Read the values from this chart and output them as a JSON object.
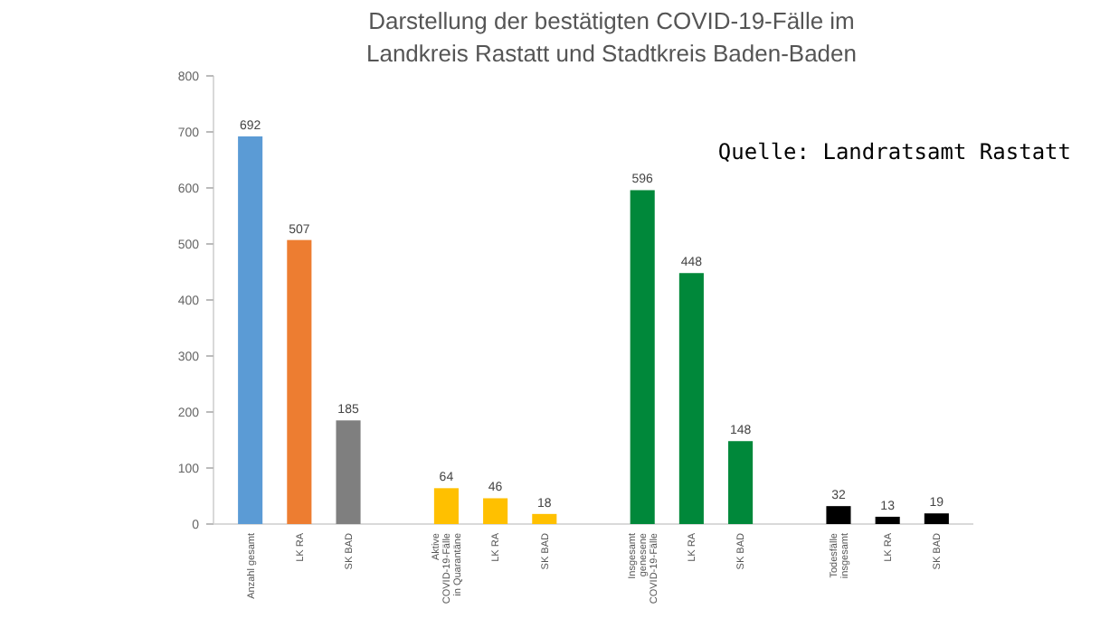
{
  "chart_data": {
    "type": "bar",
    "title": "Darstellung der bestätigten COVID-19-Fälle im Landkreis Rastatt und Stadtkreis Baden-Baden",
    "categories": [
      "Anzahl gesamt",
      "LK RA",
      "SK BAD",
      null,
      "Aktive COVID-19-Fälle in Quarantäne",
      "LK RA",
      "SK BAD",
      null,
      "Insgesamt genesene COVID-19-Fälle",
      "LK RA",
      "SK BAD",
      null,
      "Todesfälle insgesamt",
      "LK RA",
      "SK BAD"
    ],
    "values": [
      692,
      507,
      185,
      null,
      64,
      46,
      18,
      null,
      596,
      448,
      148,
      null,
      32,
      13,
      19
    ],
    "colors": [
      "#5b9bd5",
      "#ed7d31",
      "#7f7f7f",
      null,
      "#ffc000",
      "#ffc000",
      "#ffc000",
      null,
      "#00883a",
      "#00883a",
      "#00883a",
      null,
      "#000000",
      "#000000",
      "#000000"
    ],
    "ylim": [
      0,
      800
    ],
    "yticks": [
      0,
      100,
      200,
      300,
      400,
      500,
      600,
      700,
      800
    ],
    "data_labels": true,
    "grid": false,
    "annotations": [
      "Quelle: Landratsamt Rastatt"
    ]
  }
}
